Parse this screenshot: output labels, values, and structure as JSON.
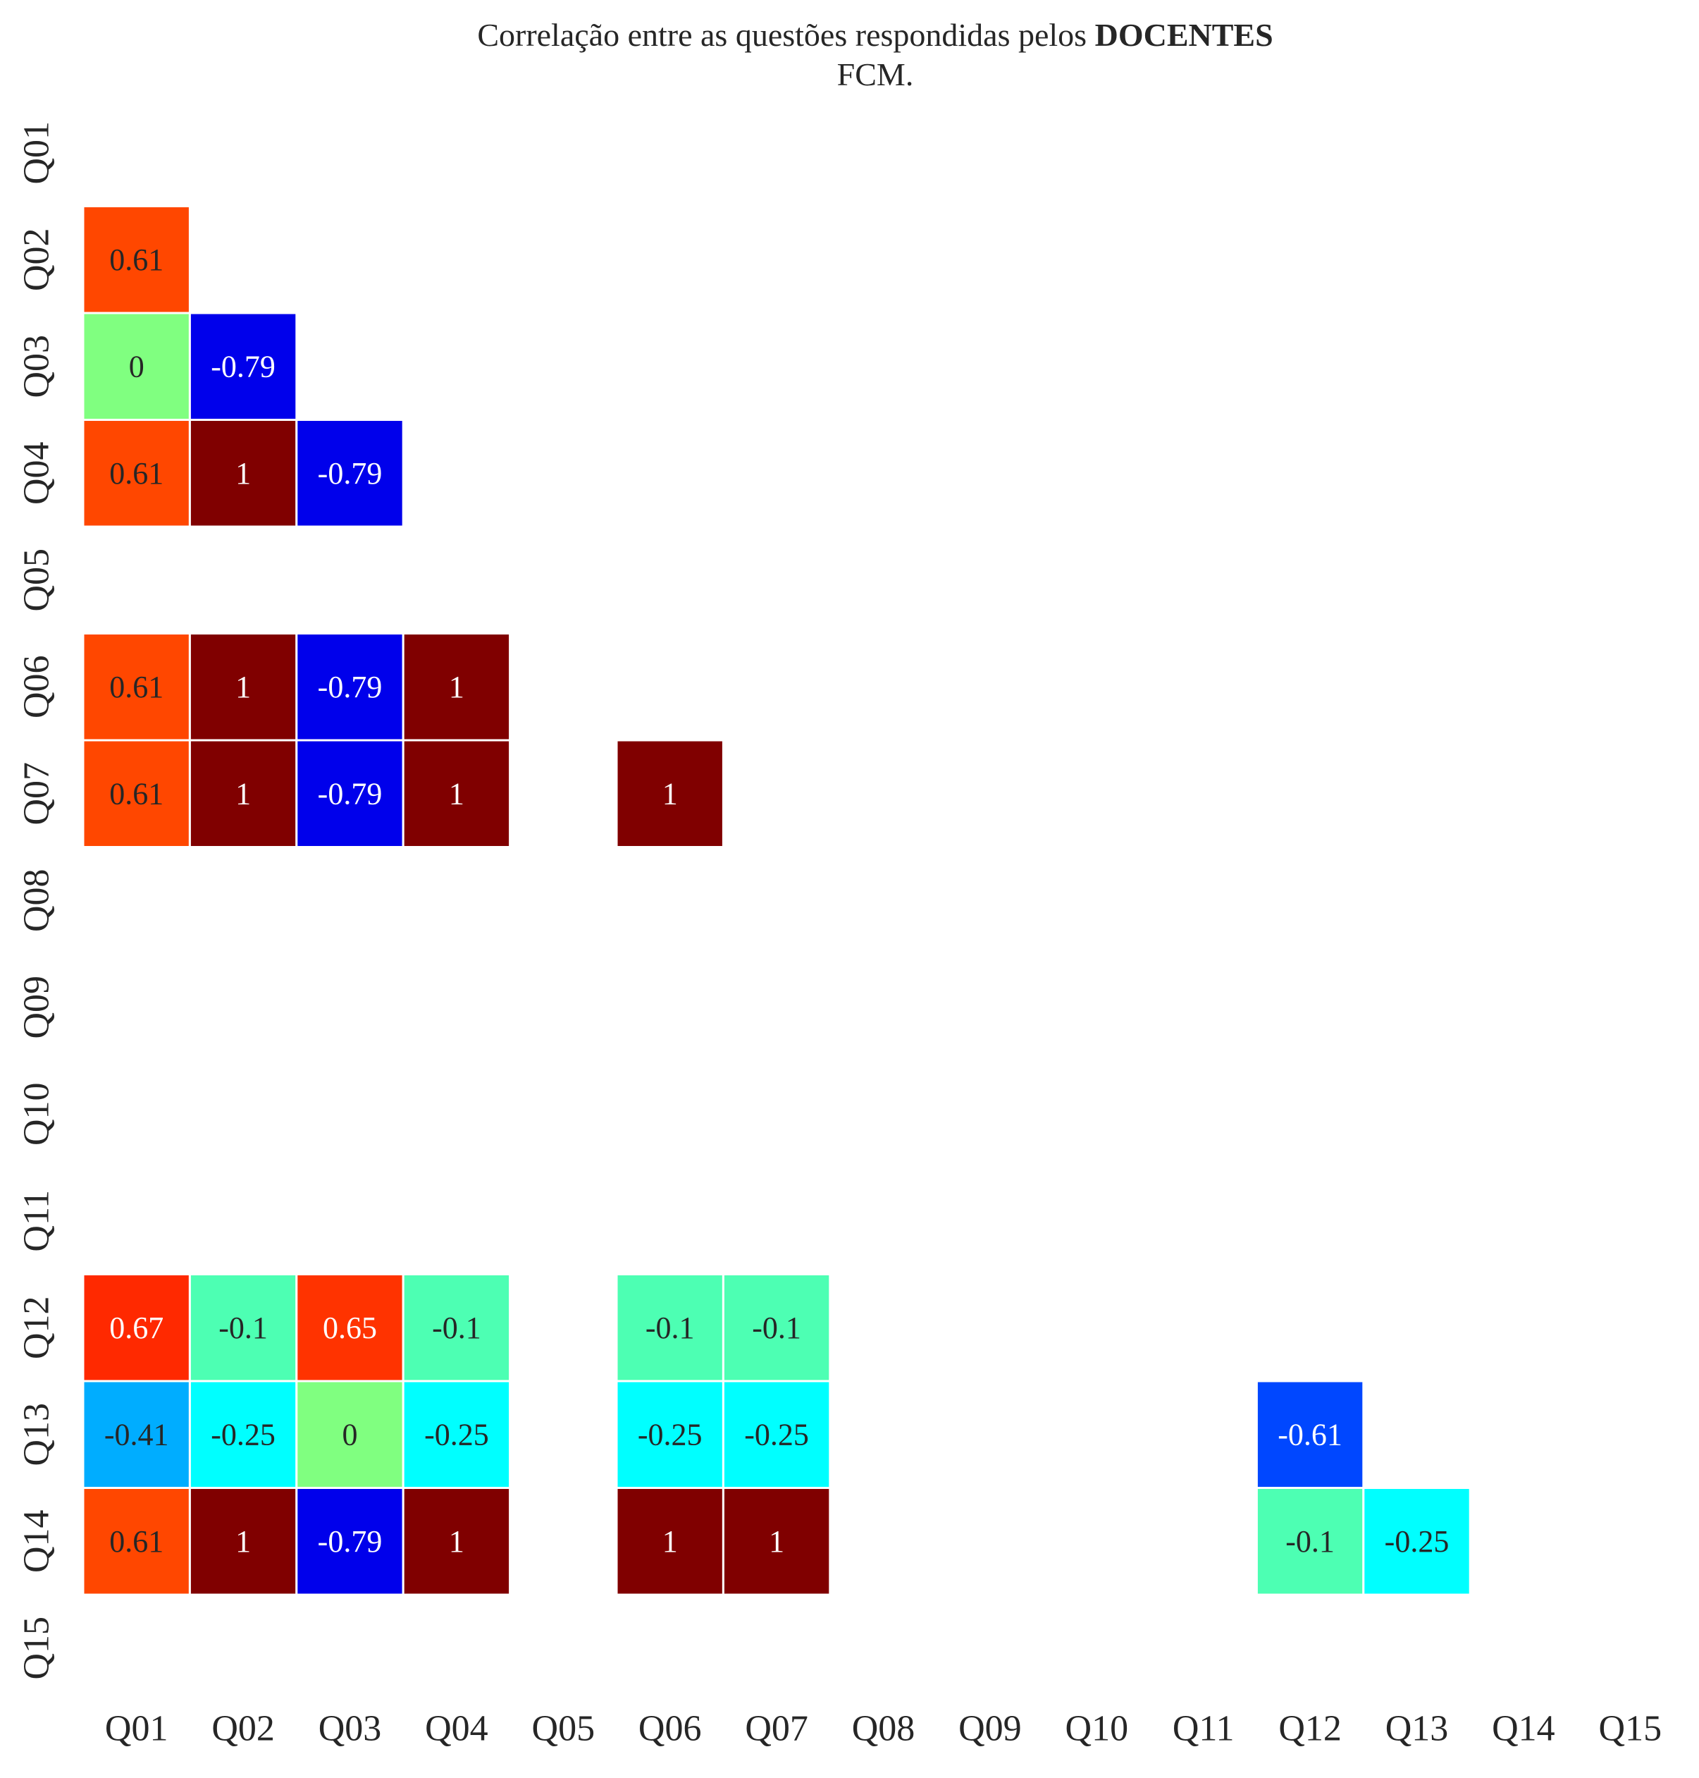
{
  "chart_data": {
    "type": "heatmap",
    "title_line1_prefix": "Correlação entre as questões respondidas pelos ",
    "title_line1_bold": "DOCENTES",
    "title_line2": "FCM.",
    "x_labels": [
      "Q01",
      "Q02",
      "Q03",
      "Q04",
      "Q05",
      "Q06",
      "Q07",
      "Q08",
      "Q09",
      "Q10",
      "Q11",
      "Q12",
      "Q13",
      "Q14",
      "Q15"
    ],
    "y_labels": [
      "Q01",
      "Q02",
      "Q03",
      "Q04",
      "Q05",
      "Q06",
      "Q07",
      "Q08",
      "Q09",
      "Q10",
      "Q11",
      "Q12",
      "Q13",
      "Q14",
      "Q15"
    ],
    "colormap": "jet",
    "vmin": -1,
    "vmax": 1,
    "mask": "upper triangle and diagonal hidden; NaN cells blank",
    "cells": [
      {
        "row": "Q02",
        "col": "Q01",
        "value": 0.61,
        "label": "0.61"
      },
      {
        "row": "Q03",
        "col": "Q01",
        "value": 0,
        "label": "0"
      },
      {
        "row": "Q03",
        "col": "Q02",
        "value": -0.79,
        "label": "-0.79"
      },
      {
        "row": "Q04",
        "col": "Q01",
        "value": 0.61,
        "label": "0.61"
      },
      {
        "row": "Q04",
        "col": "Q02",
        "value": 1,
        "label": "1"
      },
      {
        "row": "Q04",
        "col": "Q03",
        "value": -0.79,
        "label": "-0.79"
      },
      {
        "row": "Q06",
        "col": "Q01",
        "value": 0.61,
        "label": "0.61"
      },
      {
        "row": "Q06",
        "col": "Q02",
        "value": 1,
        "label": "1"
      },
      {
        "row": "Q06",
        "col": "Q03",
        "value": -0.79,
        "label": "-0.79"
      },
      {
        "row": "Q06",
        "col": "Q04",
        "value": 1,
        "label": "1"
      },
      {
        "row": "Q07",
        "col": "Q01",
        "value": 0.61,
        "label": "0.61"
      },
      {
        "row": "Q07",
        "col": "Q02",
        "value": 1,
        "label": "1"
      },
      {
        "row": "Q07",
        "col": "Q03",
        "value": -0.79,
        "label": "-0.79"
      },
      {
        "row": "Q07",
        "col": "Q04",
        "value": 1,
        "label": "1"
      },
      {
        "row": "Q07",
        "col": "Q06",
        "value": 1,
        "label": "1"
      },
      {
        "row": "Q12",
        "col": "Q01",
        "value": 0.67,
        "label": "0.67"
      },
      {
        "row": "Q12",
        "col": "Q02",
        "value": -0.1,
        "label": "-0.1"
      },
      {
        "row": "Q12",
        "col": "Q03",
        "value": 0.65,
        "label": "0.65"
      },
      {
        "row": "Q12",
        "col": "Q04",
        "value": -0.1,
        "label": "-0.1"
      },
      {
        "row": "Q12",
        "col": "Q06",
        "value": -0.1,
        "label": "-0.1"
      },
      {
        "row": "Q12",
        "col": "Q07",
        "value": -0.1,
        "label": "-0.1"
      },
      {
        "row": "Q13",
        "col": "Q01",
        "value": -0.41,
        "label": "-0.41"
      },
      {
        "row": "Q13",
        "col": "Q02",
        "value": -0.25,
        "label": "-0.25"
      },
      {
        "row": "Q13",
        "col": "Q03",
        "value": 0,
        "label": "0"
      },
      {
        "row": "Q13",
        "col": "Q04",
        "value": -0.25,
        "label": "-0.25"
      },
      {
        "row": "Q13",
        "col": "Q06",
        "value": -0.25,
        "label": "-0.25"
      },
      {
        "row": "Q13",
        "col": "Q07",
        "value": -0.25,
        "label": "-0.25"
      },
      {
        "row": "Q13",
        "col": "Q12",
        "value": -0.61,
        "label": "-0.61"
      },
      {
        "row": "Q14",
        "col": "Q01",
        "value": 0.61,
        "label": "0.61"
      },
      {
        "row": "Q14",
        "col": "Q02",
        "value": 1,
        "label": "1"
      },
      {
        "row": "Q14",
        "col": "Q03",
        "value": -0.79,
        "label": "-0.79"
      },
      {
        "row": "Q14",
        "col": "Q04",
        "value": 1,
        "label": "1"
      },
      {
        "row": "Q14",
        "col": "Q06",
        "value": 1,
        "label": "1"
      },
      {
        "row": "Q14",
        "col": "Q07",
        "value": 1,
        "label": "1"
      },
      {
        "row": "Q14",
        "col": "Q12",
        "value": -0.1,
        "label": "-0.1"
      },
      {
        "row": "Q14",
        "col": "Q13",
        "value": -0.25,
        "label": "-0.25"
      }
    ],
    "legend": "none",
    "grid": false
  }
}
